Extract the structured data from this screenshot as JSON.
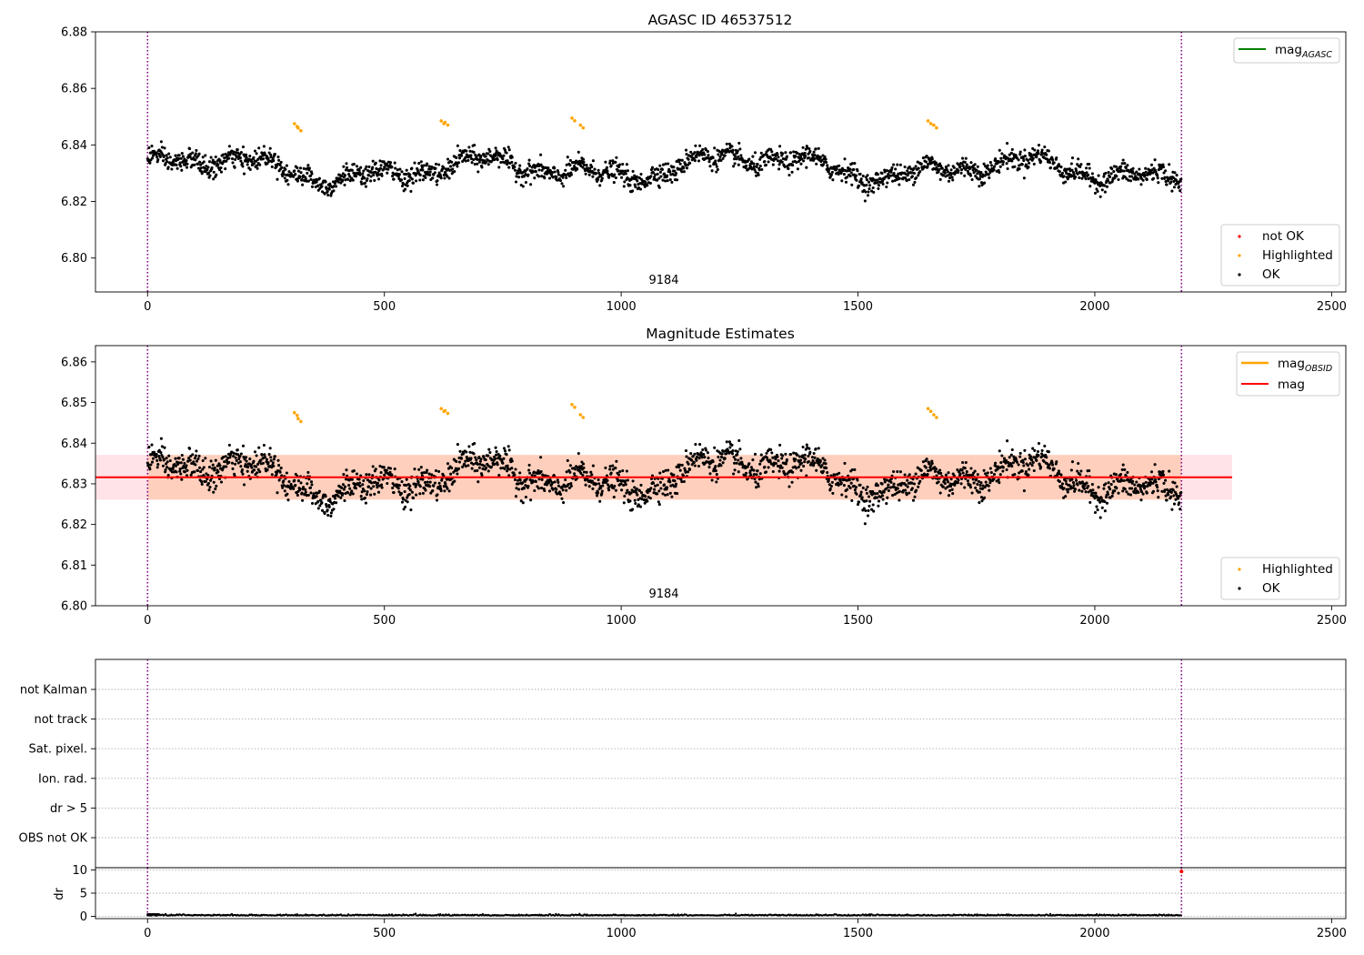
{
  "colors": {
    "ok": "#000000",
    "highlighted": "#ffa500",
    "not_ok": "#ff0000",
    "agasc_line": "#008000",
    "mag_line": "#ff0000",
    "obsid_line": "#ffa500",
    "band_inner": "#ffbf99",
    "band_outer": "#ffc0cb",
    "obs_boundary": "#800080",
    "grid": "#b0b0b0"
  },
  "chart_data": [
    {
      "type": "scatter",
      "title": "AGASC ID 46537512",
      "xlabel": "",
      "ylabel": "",
      "xlim": [
        -110,
        2530
      ],
      "ylim": [
        6.788,
        6.88
      ],
      "xticks": [
        "0",
        "500",
        "1000",
        "1500",
        "2000",
        "2500"
      ],
      "yticks": [
        "6.80",
        "6.82",
        "6.84",
        "6.86",
        "6.88"
      ],
      "obsid_label": "9184",
      "obs_boundaries": [
        0,
        2183
      ],
      "legend_lines": {
        "position": "upper right",
        "entries": [
          {
            "name": "mag",
            "sub": "AGASC"
          }
        ]
      },
      "legend_points": {
        "position": "lower right",
        "entries": [
          "not OK",
          "Highlighted",
          "OK"
        ]
      },
      "series_note": "~2180 samples, mean 6.8315, range 6.818-6.846",
      "highlighted_clusters": [
        {
          "x": [
            310,
            318
          ],
          "y": [
            6.8475,
            6.846
          ]
        },
        {
          "x": [
            620,
            628
          ],
          "y": [
            6.8485,
            6.848
          ]
        },
        {
          "x": [
            896,
            914
          ],
          "y": [
            6.8495,
            6.847
          ]
        },
        {
          "x": [
            1648,
            1660
          ],
          "y": [
            6.8485,
            6.847
          ]
        }
      ]
    },
    {
      "type": "scatter",
      "title": "Magnitude Estimates",
      "xlabel": "",
      "ylabel": "",
      "xlim": [
        -110,
        2530
      ],
      "ylim": [
        6.8,
        6.864
      ],
      "xticks": [
        "0",
        "500",
        "1000",
        "1500",
        "2000",
        "2500"
      ],
      "yticks": [
        "6.80",
        "6.81",
        "6.82",
        "6.83",
        "6.84",
        "6.85",
        "6.86"
      ],
      "obsid_label": "9184",
      "obs_boundaries": [
        0,
        2183
      ],
      "mag": 6.8316,
      "mag_band": [
        6.8261,
        6.8371
      ],
      "mag_band_x": [
        -110,
        2290
      ],
      "obsid_band_x": [
        0,
        2183
      ],
      "legend_lines": {
        "position": "upper right",
        "entries": [
          {
            "name": "mag",
            "sub": "OBSID"
          },
          {
            "name": "mag",
            "sub": ""
          }
        ]
      },
      "legend_points": {
        "position": "lower right",
        "entries": [
          "Highlighted",
          "OK"
        ]
      }
    },
    {
      "type": "scatter",
      "title": "",
      "xlabel": "",
      "ylabel": "",
      "xlim": [
        -110,
        2530
      ],
      "flags": [
        "OBS not OK",
        "dr > 5",
        "Ion. rad.",
        "Sat. pixel.",
        "not track",
        "not Kalman"
      ],
      "obs_boundaries": [
        0,
        2183
      ]
    },
    {
      "type": "scatter",
      "title": "",
      "xlabel": "",
      "ylabel": "dr",
      "xlim": [
        -110,
        2530
      ],
      "ylim": [
        -0.5,
        10.5
      ],
      "xticks": [
        "0",
        "500",
        "1000",
        "1500",
        "2000",
        "2500"
      ],
      "yticks": [
        "0",
        "5",
        "10"
      ],
      "obs_boundaries": [
        0,
        2183
      ],
      "dr_typical": 0.15,
      "dr_outlier": {
        "x": 2183,
        "y": 9.7
      }
    }
  ]
}
